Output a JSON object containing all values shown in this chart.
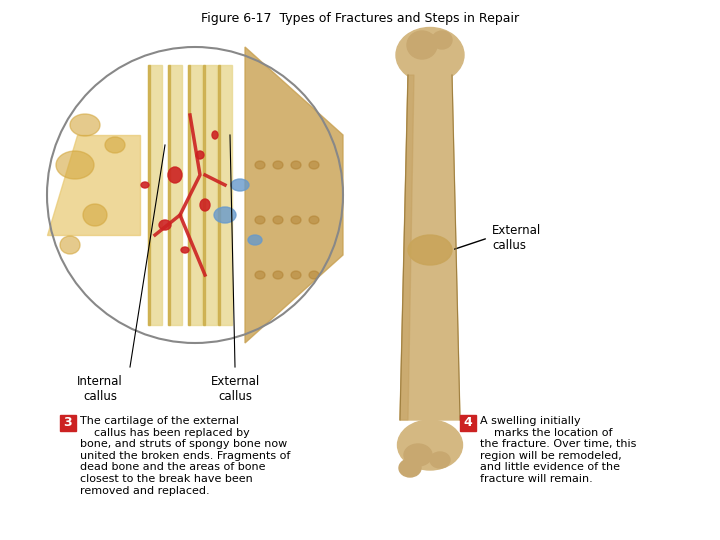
{
  "title": "Figure 6-17  Types of Fractures and Steps in Repair",
  "title_fontsize": 9,
  "title_color": "#000000",
  "background_color": "#ffffff",
  "label_internal_callus": "Internal\ncallus",
  "label_external_callus_left": "External\ncallus",
  "label_external_callus_right": "External\ncallus",
  "step3_number": "3",
  "step3_text": "The cartilage of the external\n    callus has been replaced by\nbone, and struts of spongy bone now\nunited the broken ends. Fragments of\ndead bone and the areas of bone\nclosest to the break have been\nremoved and replaced.",
  "step4_number": "4",
  "step4_text": "A swelling initially\n    marks the location of\nthe fracture. Over time, this\nregion will be remodeled,\nand little evidence of the\nfracture will remain.",
  "step_box_color": "#cc2222",
  "step_text_color": "#000000",
  "step_number_color": "#ffffff",
  "annotation_line_color": "#000000",
  "bone_image_placeholder": true,
  "microscope_image_placeholder": true
}
